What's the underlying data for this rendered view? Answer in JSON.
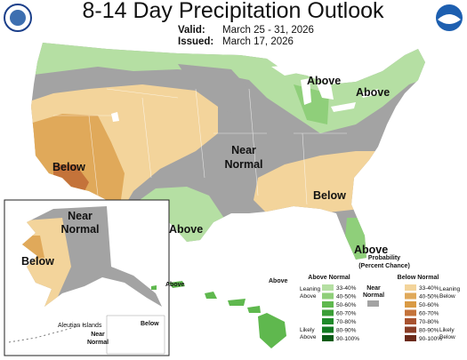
{
  "header": {
    "title": "8-14 Day Precipitation Outlook",
    "valid_label": "Valid:",
    "valid": "March 25 - 31, 2026",
    "issued_label": "Issued:",
    "issued": "March 17, 2026"
  },
  "map_labels": {
    "great_lakes": "Above",
    "northeast": "Above",
    "central": [
      "Near",
      "Normal"
    ],
    "southwest": "Below",
    "southeast": "Below",
    "texas": "Above",
    "florida": "Above"
  },
  "alaska": {
    "mainland_north": [
      "Near",
      "Normal"
    ],
    "mainland_west": "Below",
    "aleutian_title": "Aleutian Islands",
    "aleutian_near": [
      "Near",
      "Normal"
    ],
    "aleutian_below": "Below"
  },
  "hawaii": {
    "west": "Above",
    "east": "Above"
  },
  "legend": {
    "title": [
      "Probability",
      "(Percent Chance)"
    ],
    "above": "Above Normal",
    "near": [
      "Near",
      "Normal"
    ],
    "below": "Below Normal",
    "leaning_above": [
      "Leaning",
      "Above"
    ],
    "likely_above": [
      "Likely",
      "Above"
    ],
    "leaning_below": [
      "Leaning",
      "Below"
    ],
    "likely_below": [
      "Likely",
      "Below"
    ],
    "bins": [
      "33-40%",
      "40-50%",
      "50-60%",
      "60-70%",
      "70-80%",
      "80-90%",
      "90-100%"
    ]
  }
}
